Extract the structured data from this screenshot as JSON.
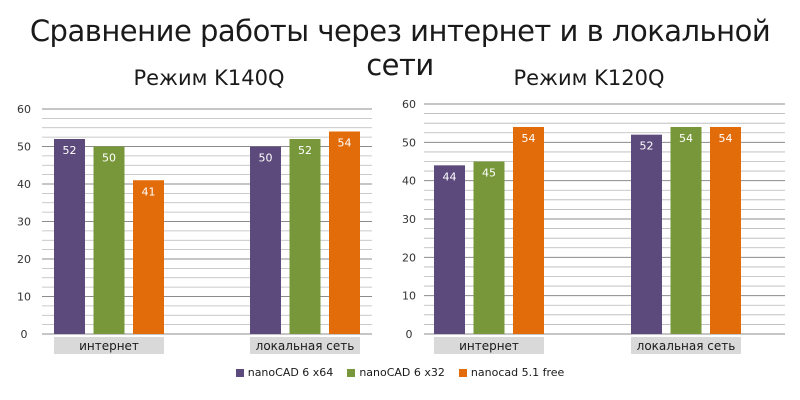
{
  "page": {
    "title": "Сравнение работы через интернет и в локальной сети"
  },
  "colors": {
    "nanocad6x64": "#5d4a7c",
    "nanocad6x32": "#78973a",
    "nanocad51free": "#e36c0a",
    "category_band": "#d9d9d9",
    "grid": "#a6a6a6"
  },
  "chart_data": [
    {
      "type": "bar",
      "title": "Режим K140Q",
      "categories": [
        "интернет",
        "локальная сеть"
      ],
      "series": [
        {
          "name": "nanoCAD 6 x64",
          "values": [
            52,
            50
          ]
        },
        {
          "name": "nanoCAD 6 x32",
          "values": [
            50,
            52
          ]
        },
        {
          "name": "nanocad 5.1 free",
          "values": [
            41,
            54
          ]
        }
      ],
      "data_labels": [
        [
          "52",
          "50"
        ],
        [
          "50",
          "52"
        ],
        [
          "41",
          "54"
        ]
      ],
      "yticks": [
        0,
        10,
        20,
        30,
        40,
        50,
        60
      ],
      "ylim": [
        0,
        60
      ],
      "xlabel": "",
      "ylabel": "",
      "grid": true
    },
    {
      "type": "bar",
      "title": "Режим K120Q",
      "categories": [
        "интернет",
        "локальная сеть"
      ],
      "series": [
        {
          "name": "nanoCAD 6 x64",
          "values": [
            44,
            52
          ]
        },
        {
          "name": "nanoCAD 6 x32",
          "values": [
            45,
            54
          ]
        },
        {
          "name": "nanocad 5.1 free",
          "values": [
            54,
            54
          ]
        }
      ],
      "data_labels": [
        [
          "44",
          "52"
        ],
        [
          "45",
          "54"
        ],
        [
          "54",
          "54"
        ]
      ],
      "yticks": [
        0,
        10,
        20,
        30,
        40,
        50,
        60
      ],
      "ylim": [
        0,
        60
      ],
      "xlabel": "",
      "ylabel": "",
      "grid": true
    }
  ],
  "legend": {
    "placement": "bottom",
    "items": [
      {
        "label": "nanoCAD 6 x64",
        "color": "#5d4a7c"
      },
      {
        "label": "nanoCAD 6 x32",
        "color": "#78973a"
      },
      {
        "label": "nanocad 5.1 free",
        "color": "#e36c0a"
      }
    ]
  }
}
